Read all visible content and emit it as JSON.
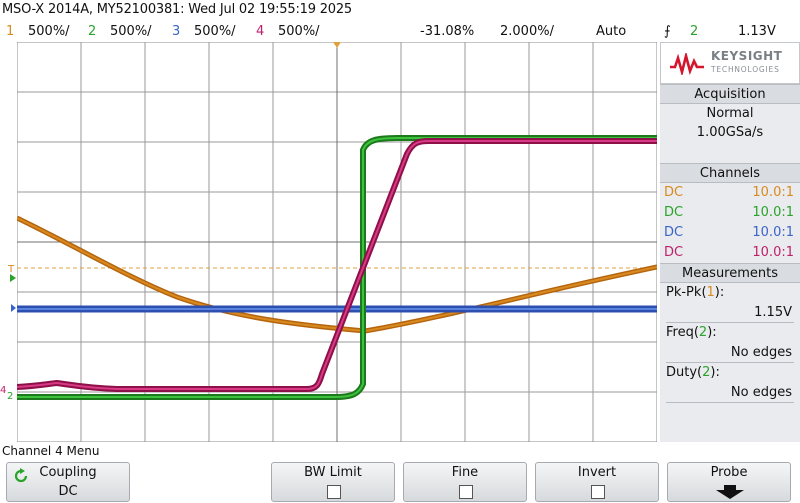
{
  "title": "MSO-X 2014A, MY52100381: Wed Jul 02 19:55:19 2025",
  "channels": [
    {
      "num": "1",
      "scale": "500%/",
      "color": "#d98a1e"
    },
    {
      "num": "2",
      "scale": "500%/",
      "color": "#2aa32a"
    },
    {
      "num": "3",
      "scale": "500%/",
      "color": "#3a64c8"
    },
    {
      "num": "4",
      "scale": "500%/",
      "color": "#c01f6a"
    }
  ],
  "timebase": {
    "delay": "-31.08%",
    "scale": "2.000%/",
    "mode": "Auto"
  },
  "trigger": {
    "slope_symbol": "⨍",
    "channel": "2",
    "level": "1.13V"
  },
  "brand": {
    "name": "KEYSIGHT",
    "sub": "TECHNOLOGIES"
  },
  "acquisition": {
    "header": "Acquisition",
    "mode": "Normal",
    "rate": "1.00GSa/s"
  },
  "channels_panel": {
    "header": "Channels",
    "rows": [
      {
        "coupling": "DC",
        "probe": "10.0:1",
        "color": "#d98a1e"
      },
      {
        "coupling": "DC",
        "probe": "10.0:1",
        "color": "#2aa32a"
      },
      {
        "coupling": "DC",
        "probe": "10.0:1",
        "color": "#3a64c8"
      },
      {
        "coupling": "DC",
        "probe": "10.0:1",
        "color": "#c01f6a"
      }
    ]
  },
  "measurements": {
    "header": "Measurements",
    "items": [
      {
        "name": "Pk-Pk",
        "ch": "1",
        "ch_color": "#d98a1e",
        "value": "1.15V"
      },
      {
        "name": "Freq",
        "ch": "2",
        "ch_color": "#2aa32a",
        "value": "No edges"
      },
      {
        "name": "Duty",
        "ch": "2",
        "ch_color": "#2aa32a",
        "value": "No edges"
      }
    ]
  },
  "menu": {
    "title": "Channel 4 Menu",
    "softkeys": [
      {
        "label": "Coupling",
        "value": "DC",
        "icon": "rotate-icon"
      },
      {
        "label": "BW Limit"
      },
      {
        "label": "Fine"
      },
      {
        "label": "Invert"
      },
      {
        "label": "Probe",
        "icon": "down-arrow-icon"
      }
    ]
  },
  "markers": {
    "trigger_level_label": "T",
    "ground_labels": [
      "4",
      "2"
    ]
  }
}
